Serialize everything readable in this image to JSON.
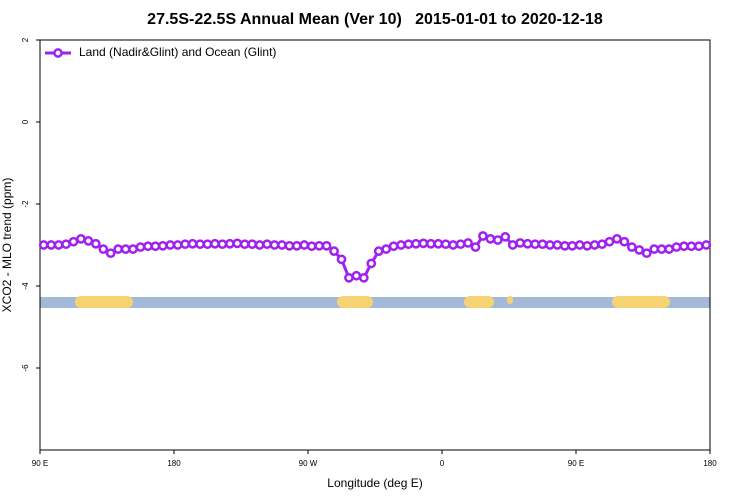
{
  "chart_data": {
    "type": "line",
    "title": "27.5S-22.5S Annual Mean (Ver 10)   2015-01-01 to 2020-12-18",
    "x_label": "Longitude (deg E)",
    "y_label": "XCO2 - MLO trend (ppm)",
    "xlim": [
      90,
      540
    ],
    "xticks": [
      {
        "value": 90,
        "label": "90 E"
      },
      180,
      {
        "value": 270,
        "label": "90 W"
      },
      {
        "value": 360,
        "label": "0"
      },
      {
        "value": 450,
        "label": "90 E"
      },
      {
        "value": 540,
        "label": "180"
      }
    ],
    "ylim": [
      -8,
      2
    ],
    "yticks": [
      2,
      0,
      -2,
      -4,
      -6
    ],
    "legend": "top-left",
    "x": [
      92.5,
      97.5,
      102.5,
      107.5,
      112.5,
      117.5,
      122.5,
      127.5,
      132.5,
      137.5,
      142.5,
      147.5,
      152.5,
      157.5,
      162.5,
      167.5,
      172.5,
      177.5,
      182.5,
      187.5,
      192.5,
      197.5,
      202.5,
      207.5,
      212.5,
      217.5,
      222.5,
      227.5,
      232.5,
      237.5,
      242.5,
      247.5,
      252.5,
      257.5,
      262.5,
      267.5,
      272.5,
      277.5,
      282.5,
      287.5,
      292.5,
      297.5,
      302.5,
      307.5,
      312.5,
      317.5,
      322.5,
      327.5,
      332.5,
      337.5,
      342.5,
      347.5,
      352.5,
      357.5,
      362.5,
      367.5,
      372.5,
      377.5,
      382.5,
      387.5,
      392.5,
      397.5,
      402.5,
      407.5,
      412.5,
      417.5,
      422.5,
      427.5,
      432.5,
      437.5,
      442.5,
      447.5,
      452.5,
      457.5,
      462.5,
      467.5,
      472.5,
      477.5,
      482.5,
      487.5,
      492.5,
      497.5,
      502.5,
      507.5,
      512.5,
      517.5,
      522.5,
      527.5,
      532.5,
      537.5
    ],
    "series": [
      {
        "name": "Land (Nadir&Glint) and Ocean (Glint)",
        "color": "#a020f0",
        "values": [
          -3.0,
          -3.0,
          -3.0,
          -2.98,
          -2.92,
          -2.85,
          -2.9,
          -2.97,
          -3.1,
          -3.2,
          -3.1,
          -3.1,
          -3.1,
          -3.05,
          -3.03,
          -3.03,
          -3.02,
          -3.0,
          -3.0,
          -2.98,
          -2.97,
          -2.98,
          -2.98,
          -2.97,
          -2.98,
          -2.97,
          -2.96,
          -2.98,
          -2.98,
          -3.0,
          -2.98,
          -3.0,
          -3.0,
          -3.02,
          -3.02,
          -3.0,
          -3.03,
          -3.02,
          -3.02,
          -3.15,
          -3.35,
          -3.8,
          -3.75,
          -3.8,
          -3.45,
          -3.15,
          -3.1,
          -3.03,
          -3.0,
          -2.98,
          -2.97,
          -2.96,
          -2.97,
          -2.97,
          -2.98,
          -3.0,
          -2.98,
          -2.95,
          -3.05,
          -2.78,
          -2.85,
          -2.88,
          -2.8,
          -3.0,
          -2.95,
          -2.97,
          -2.98,
          -2.98,
          -3.0,
          -3.0,
          -3.02,
          -3.02,
          -3.0,
          -3.02,
          -3.0,
          -2.98,
          -2.92,
          -2.85,
          -2.92,
          -3.05,
          -3.12,
          -3.2,
          -3.1,
          -3.1,
          -3.1,
          -3.05,
          -3.03,
          -3.03,
          -3.03,
          -3.0
        ]
      }
    ]
  }
}
